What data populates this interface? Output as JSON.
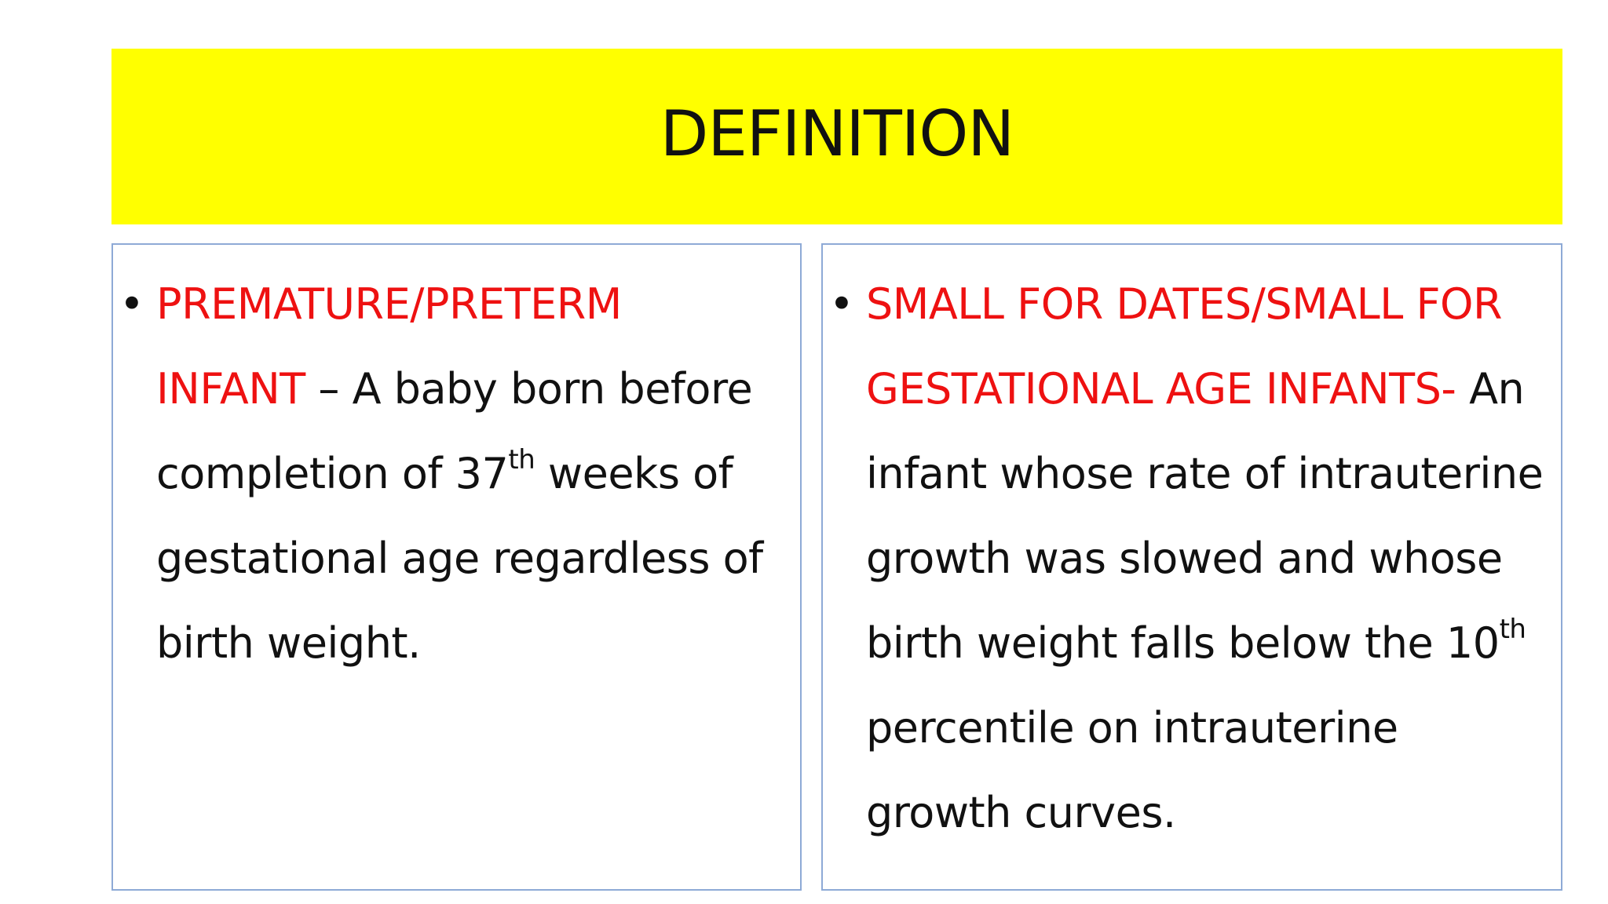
{
  "slide": {
    "title": "DEFINITION"
  },
  "left_card": {
    "bullet": "•",
    "term_line1": "PREMATURE/PRETERM",
    "term_line2": "INFANT",
    "text_after_term": " – A baby born before",
    "line3_before_sup": "completion of 37",
    "line3_sup": "th",
    "line3_after_sup": " weeks of",
    "line4": "gestational age regardless of",
    "line5": "birth weight."
  },
  "right_card": {
    "bullet": "•",
    "term_line1": "SMALL FOR DATES/SMALL FOR",
    "term_line2": "GESTATIONAL AGE INFANTS-",
    "text_after_term": " An",
    "line3": "infant whose rate of intrauterine",
    "line4": "growth was slowed and whose",
    "line5_before_sup": "birth weight falls below the 10",
    "line5_sup": "th",
    "line6": "percentile on intrauterine",
    "line7": "growth curves."
  },
  "colors": {
    "title_bg": "#ffff00",
    "term": "#ee1111",
    "card_border": "#8eaad6"
  }
}
